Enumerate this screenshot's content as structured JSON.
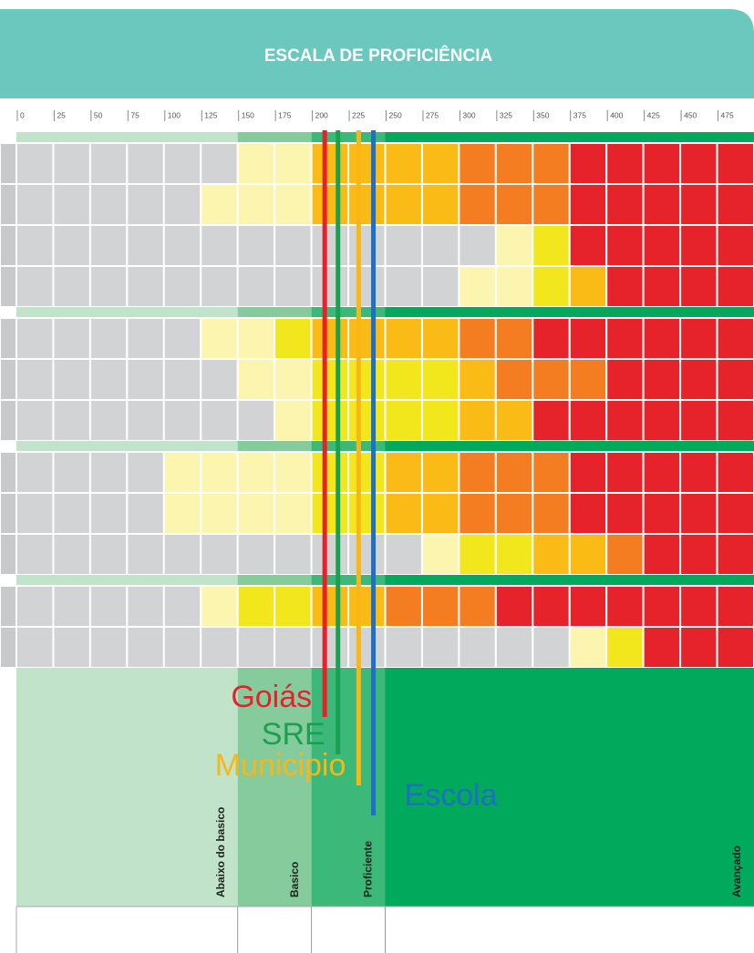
{
  "chart_data": {
    "type": "scale",
    "title": "ESCALA DE PROFICIÊNCIA",
    "xlim": [
      0,
      500
    ],
    "xticks": [
      0,
      25,
      50,
      75,
      100,
      125,
      150,
      175,
      200,
      225,
      250,
      275,
      300,
      325,
      350,
      375,
      400,
      425,
      450,
      475
    ],
    "levels": [
      {
        "name": "Abaixo do basico",
        "range": [
          0,
          150
        ],
        "color": "#c0e3ca"
      },
      {
        "name": "Basico",
        "range": [
          150,
          200
        ],
        "color": "#85cb9c"
      },
      {
        "name": "Proficiente",
        "range": [
          200,
          250
        ],
        "color": "#3cb878"
      },
      {
        "name": "Avançado",
        "range": [
          250,
          500
        ],
        "color": "#00a95c"
      }
    ],
    "groups": [
      [
        [
          "#d1d3d4",
          "#d1d3d4",
          "#d1d3d4",
          "#d1d3d4",
          "#d1d3d4",
          "#d1d3d4",
          "#fbf5b0",
          "#fbf5b0",
          "#fbbb16",
          "#fbbb16",
          "#fbbb16",
          "#fbbb16",
          "#f47d22",
          "#f47d22",
          "#f47d22",
          "#e6232a",
          "#e6232a",
          "#e6232a",
          "#e6232a",
          "#e6232a"
        ],
        [
          "#d1d3d4",
          "#d1d3d4",
          "#d1d3d4",
          "#d1d3d4",
          "#d1d3d4",
          "#fbf5b0",
          "#fbf5b0",
          "#fbf5b0",
          "#fbbb16",
          "#fbbb16",
          "#fbbb16",
          "#fbbb16",
          "#f47d22",
          "#f47d22",
          "#f47d22",
          "#e6232a",
          "#e6232a",
          "#e6232a",
          "#e6232a",
          "#e6232a"
        ],
        [
          "#d1d3d4",
          "#d1d3d4",
          "#d1d3d4",
          "#d1d3d4",
          "#d1d3d4",
          "#d1d3d4",
          "#d1d3d4",
          "#d1d3d4",
          "#d1d3d4",
          "#d1d3d4",
          "#d1d3d4",
          "#d1d3d4",
          "#d1d3d4",
          "#fbf5b0",
          "#f2e61c",
          "#e6232a",
          "#e6232a",
          "#e6232a",
          "#e6232a",
          "#e6232a"
        ],
        [
          "#d1d3d4",
          "#d1d3d4",
          "#d1d3d4",
          "#d1d3d4",
          "#d1d3d4",
          "#d1d3d4",
          "#d1d3d4",
          "#d1d3d4",
          "#d1d3d4",
          "#d1d3d4",
          "#d1d3d4",
          "#d1d3d4",
          "#fbf5b0",
          "#fbf5b0",
          "#f2e61c",
          "#fbbb16",
          "#e6232a",
          "#e6232a",
          "#e6232a",
          "#e6232a"
        ]
      ],
      [
        [
          "#d1d3d4",
          "#d1d3d4",
          "#d1d3d4",
          "#d1d3d4",
          "#d1d3d4",
          "#fbf5b0",
          "#fbf5b0",
          "#f2e61c",
          "#fbbb16",
          "#fbbb16",
          "#fbbb16",
          "#fbbb16",
          "#f47d22",
          "#f47d22",
          "#e6232a",
          "#e6232a",
          "#e6232a",
          "#e6232a",
          "#e6232a",
          "#e6232a"
        ],
        [
          "#d1d3d4",
          "#d1d3d4",
          "#d1d3d4",
          "#d1d3d4",
          "#d1d3d4",
          "#d1d3d4",
          "#fbf5b0",
          "#fbf5b0",
          "#f2e61c",
          "#f2e61c",
          "#f2e61c",
          "#f2e61c",
          "#fbbb16",
          "#f47d22",
          "#f47d22",
          "#f47d22",
          "#e6232a",
          "#e6232a",
          "#e6232a",
          "#e6232a"
        ],
        [
          "#d1d3d4",
          "#d1d3d4",
          "#d1d3d4",
          "#d1d3d4",
          "#d1d3d4",
          "#d1d3d4",
          "#d1d3d4",
          "#fbf5b0",
          "#f2e61c",
          "#f2e61c",
          "#f2e61c",
          "#f2e61c",
          "#fbbb16",
          "#fbbb16",
          "#e6232a",
          "#e6232a",
          "#e6232a",
          "#e6232a",
          "#e6232a",
          "#e6232a"
        ]
      ],
      [
        [
          "#d1d3d4",
          "#d1d3d4",
          "#d1d3d4",
          "#d1d3d4",
          "#fbf5b0",
          "#fbf5b0",
          "#fbf5b0",
          "#fbf5b0",
          "#f2e61c",
          "#f2e61c",
          "#fbbb16",
          "#fbbb16",
          "#f47d22",
          "#f47d22",
          "#f47d22",
          "#e6232a",
          "#e6232a",
          "#e6232a",
          "#e6232a",
          "#e6232a"
        ],
        [
          "#d1d3d4",
          "#d1d3d4",
          "#d1d3d4",
          "#d1d3d4",
          "#fbf5b0",
          "#fbf5b0",
          "#fbf5b0",
          "#fbf5b0",
          "#f2e61c",
          "#f2e61c",
          "#fbbb16",
          "#fbbb16",
          "#f47d22",
          "#f47d22",
          "#f47d22",
          "#e6232a",
          "#e6232a",
          "#e6232a",
          "#e6232a",
          "#e6232a"
        ],
        [
          "#d1d3d4",
          "#d1d3d4",
          "#d1d3d4",
          "#d1d3d4",
          "#d1d3d4",
          "#d1d3d4",
          "#d1d3d4",
          "#d1d3d4",
          "#d1d3d4",
          "#d1d3d4",
          "#d1d3d4",
          "#fbf5b0",
          "#f2e61c",
          "#f2e61c",
          "#fbbb16",
          "#fbbb16",
          "#f47d22",
          "#e6232a",
          "#e6232a",
          "#e6232a"
        ]
      ],
      [
        [
          "#d1d3d4",
          "#d1d3d4",
          "#d1d3d4",
          "#d1d3d4",
          "#d1d3d4",
          "#fbf5b0",
          "#f2e61c",
          "#f2e61c",
          "#fbbb16",
          "#fbbb16",
          "#f47d22",
          "#f47d22",
          "#f47d22",
          "#e6232a",
          "#e6232a",
          "#e6232a",
          "#e6232a",
          "#e6232a",
          "#e6232a",
          "#e6232a"
        ],
        [
          "#d1d3d4",
          "#d1d3d4",
          "#d1d3d4",
          "#d1d3d4",
          "#d1d3d4",
          "#d1d3d4",
          "#d1d3d4",
          "#d1d3d4",
          "#d1d3d4",
          "#d1d3d4",
          "#d1d3d4",
          "#d1d3d4",
          "#d1d3d4",
          "#d1d3d4",
          "#d1d3d4",
          "#fbf5b0",
          "#f2e61c",
          "#e6232a",
          "#e6232a",
          "#e6232a"
        ]
      ]
    ],
    "markers": [
      {
        "name": "Goiás",
        "value": 209,
        "color": "#e8202a"
      },
      {
        "name": "SRE",
        "value": 218,
        "color": "#1aa051"
      },
      {
        "name": "Municipio",
        "value": 232,
        "color": "#f9b716"
      },
      {
        "name": "Escola",
        "value": 242,
        "color": "#1f6fc4"
      }
    ]
  }
}
